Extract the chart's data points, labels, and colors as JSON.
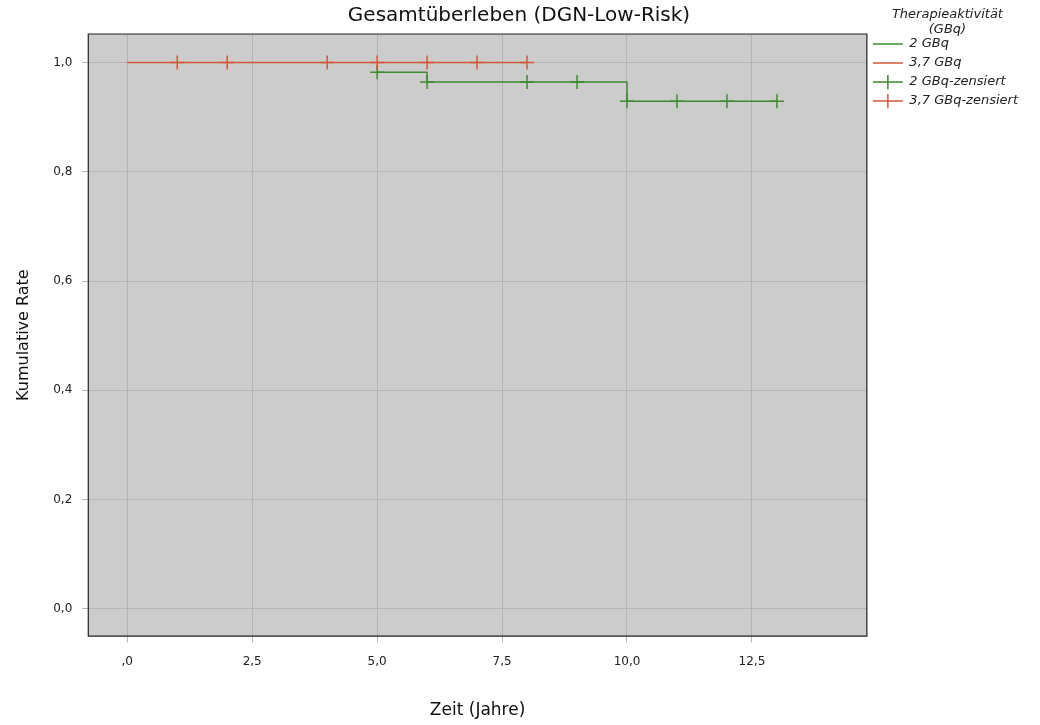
{
  "chart_data": {
    "type": "step",
    "title": "Gesamtüberleben (DGN-Low-Risk)",
    "xlabel": "Zeit (Jahre)",
    "ylabel": "Kumulative Rate",
    "legend_title": "Therapieaktivität (GBq)",
    "legend": "top right",
    "grid": true,
    "xlim": [
      -0.78,
      14.8
    ],
    "xticks": [
      {
        "value": 0,
        "label": ",0"
      },
      {
        "value": 2.5,
        "label": "2,5"
      },
      {
        "value": 5,
        "label": "5,0"
      },
      {
        "value": 7.5,
        "label": "7,5"
      },
      {
        "value": 10,
        "label": "10,0"
      },
      {
        "value": 12.5,
        "label": "12,5"
      }
    ],
    "ylim": [
      -0.05,
      1.052
    ],
    "yticks": [
      {
        "value": 0,
        "label": "0,0"
      },
      {
        "value": 0.2,
        "label": "0,2"
      },
      {
        "value": 0.4,
        "label": "0,4"
      },
      {
        "value": 0.6,
        "label": "0,6"
      },
      {
        "value": 0.8,
        "label": "0,8"
      },
      {
        "value": 1,
        "label": "1,0"
      }
    ],
    "series": [
      {
        "name": "2 GBq",
        "color": "#3d8b2f",
        "marker": "none",
        "x": [
          5,
          6,
          10,
          13
        ],
        "values": [
          0.982,
          0.964,
          0.929,
          0.929
        ]
      },
      {
        "name": "3,7 GBq",
        "color": "#d2573a",
        "marker": "none",
        "x": [
          0,
          8
        ],
        "values": [
          1,
          1
        ]
      },
      {
        "name": "2 GBq-zensiert",
        "type": "scatter",
        "color": "#3d8b2f",
        "marker": "cross",
        "x": [
          5,
          6,
          8,
          9,
          10,
          11,
          12,
          13
        ],
        "values": [
          0.982,
          0.964,
          0.964,
          0.964,
          0.929,
          0.929,
          0.929,
          0.929
        ]
      },
      {
        "name": "3,7 GBq-zensiert",
        "type": "scatter",
        "color": "#d2573a",
        "marker": "cross",
        "x": [
          1,
          2,
          4,
          5,
          6,
          7,
          8
        ],
        "values": [
          1,
          1,
          1,
          1,
          1,
          1,
          1
        ]
      }
    ]
  }
}
